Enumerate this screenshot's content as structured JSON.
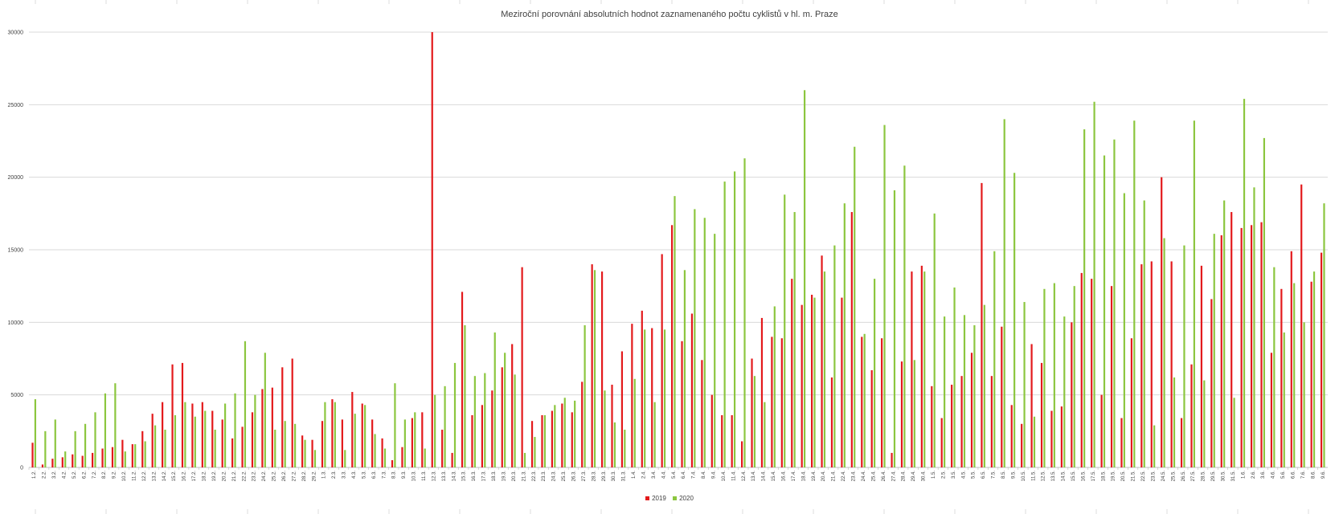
{
  "chart_data": {
    "type": "bar",
    "title": "Meziroční porovnání absolutních hodnot  zaznamenaného počtu cyklistů v hl. m. Praze",
    "xlabel": "",
    "ylabel": "",
    "ylim": [
      0,
      30000
    ],
    "yticks": [
      0,
      5000,
      10000,
      15000,
      20000,
      25000,
      30000
    ],
    "grid": true,
    "legend": "bottom",
    "categories": [
      "1.2.",
      "2.2.",
      "3.2.",
      "4.2.",
      "5.2.",
      "6.2.",
      "7.2.",
      "8.2.",
      "9.2.",
      "10.2.",
      "11.2.",
      "12.2.",
      "13.2.",
      "14.2.",
      "15.2.",
      "16.2.",
      "17.2.",
      "18.2.",
      "19.2.",
      "20.2.",
      "21.2.",
      "22.2.",
      "23.2.",
      "24.2.",
      "25.2.",
      "26.2.",
      "27.2.",
      "28.2.",
      "29.2.",
      "1.3.",
      "2.3.",
      "3.3.",
      "4.3.",
      "5.3.",
      "6.3.",
      "7.3.",
      "8.3.",
      "9.3.",
      "10.3.",
      "11.3.",
      "12.3.",
      "13.3.",
      "14.3.",
      "15.3.",
      "16.3.",
      "17.3.",
      "18.3.",
      "19.3.",
      "20.3.",
      "21.3.",
      "22.3.",
      "23.3.",
      "24.3.",
      "25.3.",
      "26.3.",
      "27.3.",
      "28.3.",
      "29.3.",
      "30.3.",
      "31.3.",
      "1.4.",
      "2.4.",
      "3.4.",
      "4.4.",
      "5.4.",
      "6.4.",
      "7.4.",
      "8.4.",
      "9.4.",
      "10.4.",
      "11.4.",
      "12.4.",
      "13.4.",
      "14.4.",
      "15.4.",
      "16.4.",
      "17.4.",
      "18.4.",
      "19.4.",
      "20.4.",
      "21.4.",
      "22.4.",
      "23.4.",
      "24.4.",
      "25.4.",
      "26.4.",
      "27.4.",
      "28.4.",
      "29.4.",
      "30.4.",
      "1.5.",
      "2.5.",
      "3.5.",
      "4.5.",
      "5.5.",
      "6.5.",
      "7.5.",
      "8.5.",
      "9.5.",
      "10.5.",
      "11.5.",
      "12.5.",
      "13.5.",
      "14.5.",
      "15.5.",
      "16.5.",
      "17.5.",
      "18.5.",
      "19.5.",
      "20.5.",
      "21.5.",
      "22.5.",
      "23.5.",
      "24.5.",
      "25.5.",
      "26.5.",
      "27.5.",
      "28.5.",
      "29.5.",
      "30.5.",
      "31.5.",
      "1.6.",
      "2.6.",
      "3.6.",
      "4.6.",
      "5.6.",
      "6.6.",
      "7.6.",
      "8.6.",
      "9.6."
    ],
    "series": [
      {
        "name": "2019",
        "color": "#e31a1c",
        "values": [
          1700,
          200,
          600,
          700,
          900,
          800,
          1000,
          1300,
          1400,
          1900,
          1600,
          2500,
          3700,
          4500,
          7100,
          7200,
          4400,
          4500,
          3900,
          3300,
          2000,
          2800,
          3800,
          5400,
          5500,
          6900,
          7500,
          2200,
          1900,
          3200,
          4700,
          3300,
          5200,
          4400,
          3300,
          2000,
          500,
          1400,
          3400,
          3800,
          30000,
          2600,
          1000,
          12100,
          3600,
          4300,
          5300,
          6900,
          8500,
          13800,
          3200,
          3600,
          3900,
          4400,
          3800,
          5900,
          14000,
          13500,
          5700,
          8000,
          9900,
          10800,
          9600,
          14700,
          16700,
          8700,
          10600,
          7400,
          5000,
          3600,
          3600,
          1800,
          7500,
          10300,
          9000,
          8900,
          13000,
          11200,
          11900,
          14600,
          6200,
          11700,
          17600,
          9000,
          6700,
          8900,
          1000,
          7300,
          13500,
          13900,
          5600,
          3400,
          5700,
          6300,
          7900,
          19600,
          6300,
          9700,
          4300,
          3000,
          8500,
          7200,
          3900,
          4200,
          10000,
          13400,
          13000,
          5000,
          12500,
          3400,
          8900,
          14000,
          14200,
          20000,
          14200,
          3400,
          7100,
          13900,
          11600,
          16000,
          17600,
          16500,
          16700,
          16900,
          7900,
          12300,
          14900,
          19500,
          12800,
          14800
        ]
      },
      {
        "name": "2020",
        "color": "#8cc63f",
        "values": [
          4700,
          2500,
          3300,
          1100,
          2500,
          3000,
          3800,
          5100,
          5800,
          1100,
          1600,
          1800,
          2900,
          2600,
          3600,
          4500,
          3500,
          3900,
          2600,
          4400,
          5100,
          8700,
          5000,
          7900,
          2600,
          3200,
          3000,
          1900,
          1200,
          4500,
          4500,
          1200,
          3700,
          4300,
          2300,
          1300,
          5800,
          3300,
          3800,
          1300,
          5000,
          5600,
          7200,
          9800,
          6300,
          6500,
          9300,
          7900,
          6400,
          1000,
          2100,
          3600,
          4300,
          4800,
          4600,
          9800,
          13600,
          5300,
          3100,
          2600,
          6100,
          9500,
          4500,
          9500,
          18700,
          13600,
          17800,
          17200,
          16100,
          19700,
          20400,
          21300,
          6300,
          4500,
          11100,
          18800,
          17600,
          26000,
          11700,
          13500,
          15300,
          18200,
          22100,
          9200,
          13000,
          23600,
          19100,
          20800,
          7400,
          13500,
          17500,
          10400,
          12400,
          10500,
          9800,
          11200,
          14900,
          24000,
          20300,
          11400,
          3500,
          12300,
          12700,
          10400,
          12500,
          23300,
          25200,
          21500,
          22600,
          18900,
          23900,
          18400,
          2900,
          15800,
          6200,
          15300,
          23900,
          6000,
          16100,
          18400,
          4800,
          25400,
          19300,
          22700,
          13800,
          9300,
          12700,
          10000,
          13500,
          18200
        ]
      }
    ]
  }
}
